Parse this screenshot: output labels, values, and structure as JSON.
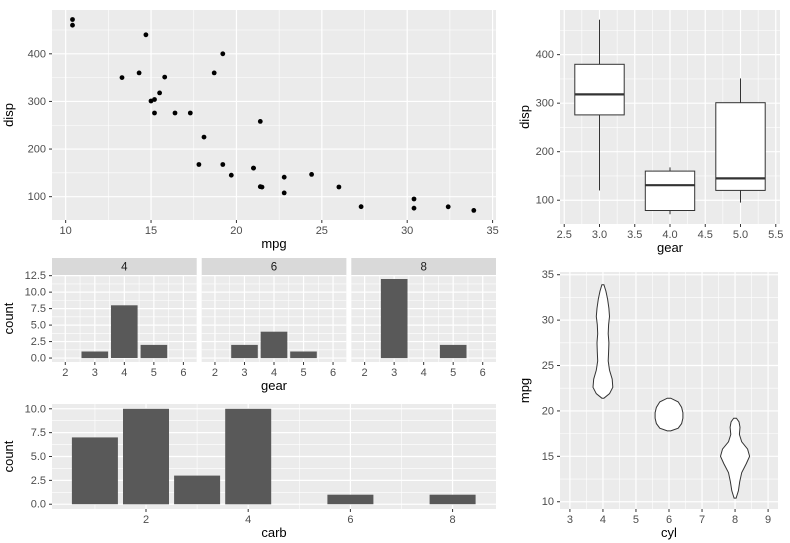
{
  "figure": {
    "background": "#FFFFFF",
    "panel_bg": "#EBEBEB",
    "grid_color": "#FFFFFF",
    "bar_fill": "#595959",
    "point_color": "#000000",
    "strip_bg": "#D9D9D9",
    "box_stroke": "#333333",
    "tick_label_color": "#4D4D4D",
    "axis_title_color": "#000000"
  },
  "chart_data": [
    {
      "id": "scatter",
      "type": "scatter",
      "x": {
        "title": "mpg",
        "lim": [
          9.2,
          35.2
        ],
        "ticks": [
          10,
          15,
          20,
          25,
          30,
          35
        ],
        "labels": [
          "10",
          "15",
          "20",
          "25",
          "30",
          "35"
        ],
        "minor": [
          12.5,
          17.5,
          22.5,
          27.5,
          32.5
        ]
      },
      "y": {
        "title": "disp",
        "lim": [
          51,
          492
        ],
        "ticks": [
          100,
          200,
          300,
          400
        ],
        "labels": [
          "100",
          "200",
          "300",
          "400"
        ],
        "minor": [
          50,
          150,
          250,
          350,
          450
        ]
      },
      "points": {
        "x": [
          21,
          21,
          22.8,
          21.4,
          18.7,
          18.1,
          14.3,
          24.4,
          22.8,
          19.2,
          17.8,
          16.4,
          17.3,
          15.2,
          10.4,
          10.4,
          14.7,
          32.4,
          30.4,
          33.9,
          21.5,
          15.5,
          15.2,
          13.3,
          19.2,
          27.3,
          26,
          30.4,
          15.8,
          19.7,
          15,
          21.4
        ],
        "y": [
          160,
          160,
          108,
          258,
          360,
          225,
          360,
          146.7,
          140.8,
          167.6,
          167.6,
          275.8,
          275.8,
          275.8,
          472,
          460,
          440,
          78.7,
          75.7,
          71.1,
          120.1,
          318,
          304,
          350,
          400,
          79,
          120.3,
          95.1,
          351,
          145,
          301,
          121
        ]
      }
    },
    {
      "id": "box",
      "type": "box",
      "x": {
        "title": "gear",
        "lim": [
          2.44,
          5.56
        ],
        "ticks": [
          2.5,
          3,
          3.5,
          4,
          4.5,
          5,
          5.5
        ],
        "labels": [
          "2.5",
          "3.0",
          "3.5",
          "4.0",
          "4.5",
          "5.0",
          "5.5"
        ],
        "minor": [
          2.75,
          3.25,
          3.75,
          4.25,
          4.75,
          5.25
        ]
      },
      "y": {
        "title": "disp",
        "lim": [
          51,
          492
        ],
        "ticks": [
          100,
          200,
          300,
          400
        ],
        "labels": [
          "100",
          "200",
          "300",
          "400"
        ],
        "minor": [
          50,
          150,
          250,
          350,
          450
        ]
      },
      "box_width": 0.7,
      "boxes": [
        {
          "x": 3,
          "min": 120.1,
          "q1": 275.8,
          "median": 318,
          "q3": 380,
          "max": 472
        },
        {
          "x": 4,
          "min": 71.1,
          "q1": 78.9,
          "median": 130.9,
          "q3": 160,
          "max": 167.6
        },
        {
          "x": 5,
          "min": 95.1,
          "q1": 120.3,
          "median": 145,
          "q3": 301,
          "max": 351
        }
      ]
    },
    {
      "id": "facet",
      "type": "facet_bar",
      "x": {
        "title": "gear",
        "lim": [
          1.55,
          6.45
        ],
        "ticks": [
          2,
          3,
          4,
          5,
          6
        ],
        "labels": [
          "2",
          "3",
          "4",
          "5",
          "6"
        ],
        "minor": [
          2.5,
          3.5,
          4.5,
          5.5
        ]
      },
      "y": {
        "title": "count",
        "lim": [
          -0.6,
          12.6
        ],
        "ticks": [
          0,
          2.5,
          5,
          7.5,
          10,
          12.5
        ],
        "labels": [
          "0.0",
          "2.5",
          "5.0",
          "7.5",
          "10.0",
          "12.5"
        ],
        "minor": [
          1.25,
          3.75,
          6.25,
          8.75,
          11.25
        ]
      },
      "bar_width": 0.9,
      "facets": [
        {
          "label": "4",
          "categories": [
            3,
            4,
            5
          ],
          "values": [
            1,
            8,
            2
          ]
        },
        {
          "label": "6",
          "categories": [
            3,
            4,
            5
          ],
          "values": [
            2,
            4,
            1
          ]
        },
        {
          "label": "8",
          "categories": [
            3,
            4,
            5
          ],
          "values": [
            12,
            0,
            2
          ]
        }
      ]
    },
    {
      "id": "carb",
      "type": "bar",
      "x": {
        "title": "carb",
        "lim": [
          0.16,
          8.85
        ],
        "ticks": [
          2,
          4,
          6,
          8
        ],
        "labels": [
          "2",
          "4",
          "6",
          "8"
        ],
        "minor": [
          1,
          3,
          5,
          7
        ]
      },
      "y": {
        "title": "count",
        "lim": [
          -0.5,
          10.5
        ],
        "ticks": [
          0,
          2.5,
          5,
          7.5,
          10
        ],
        "labels": [
          "0.0",
          "2.5",
          "5.0",
          "7.5",
          "10.0"
        ],
        "minor": [
          1.25,
          3.75,
          6.25,
          8.75
        ]
      },
      "bar_width": 0.9,
      "categories": [
        1,
        2,
        3,
        4,
        6,
        8
      ],
      "values": [
        7,
        10,
        3,
        10,
        1,
        1
      ]
    },
    {
      "id": "violin",
      "type": "violin",
      "x": {
        "title": "cyl",
        "lim": [
          2.7,
          9.3
        ],
        "ticks": [
          3,
          4,
          5,
          6,
          7,
          8,
          9
        ],
        "labels": [
          "3",
          "4",
          "5",
          "6",
          "7",
          "8",
          "9"
        ],
        "minor": [
          3.5,
          4.5,
          5.5,
          6.5,
          7.5,
          8.5
        ]
      },
      "y": {
        "title": "mpg",
        "lim": [
          9.2,
          35.3
        ],
        "ticks": [
          10,
          15,
          20,
          25,
          30,
          35
        ],
        "labels": [
          "10",
          "15",
          "20",
          "25",
          "30",
          "35"
        ],
        "minor": [
          12.5,
          17.5,
          22.5,
          27.5,
          32.5
        ]
      },
      "violins": [
        {
          "x": 4,
          "profile": [
            [
              21.4,
              0.03
            ],
            [
              21.9,
              0.2
            ],
            [
              22.6,
              0.3
            ],
            [
              23.5,
              0.28
            ],
            [
              24.5,
              0.2
            ],
            [
              25.5,
              0.16
            ],
            [
              26.5,
              0.17
            ],
            [
              27.5,
              0.18
            ],
            [
              28.5,
              0.16
            ],
            [
              29.5,
              0.17
            ],
            [
              30.4,
              0.2
            ],
            [
              31.3,
              0.18
            ],
            [
              32.3,
              0.14
            ],
            [
              33.2,
              0.09
            ],
            [
              33.9,
              0.03
            ]
          ]
        },
        {
          "x": 6,
          "profile": [
            [
              17.8,
              0.05
            ],
            [
              18.1,
              0.28
            ],
            [
              18.6,
              0.38
            ],
            [
              19.2,
              0.42
            ],
            [
              19.8,
              0.42
            ],
            [
              20.4,
              0.38
            ],
            [
              21.0,
              0.28
            ],
            [
              21.4,
              0.05
            ]
          ]
        },
        {
          "x": 8,
          "profile": [
            [
              10.4,
              0.03
            ],
            [
              11.2,
              0.1
            ],
            [
              12.2,
              0.14
            ],
            [
              13.2,
              0.2
            ],
            [
              14.2,
              0.34
            ],
            [
              15.0,
              0.44
            ],
            [
              15.8,
              0.38
            ],
            [
              16.6,
              0.2
            ],
            [
              17.4,
              0.13
            ],
            [
              18.2,
              0.15
            ],
            [
              18.8,
              0.12
            ],
            [
              19.2,
              0.04
            ]
          ]
        }
      ]
    }
  ]
}
